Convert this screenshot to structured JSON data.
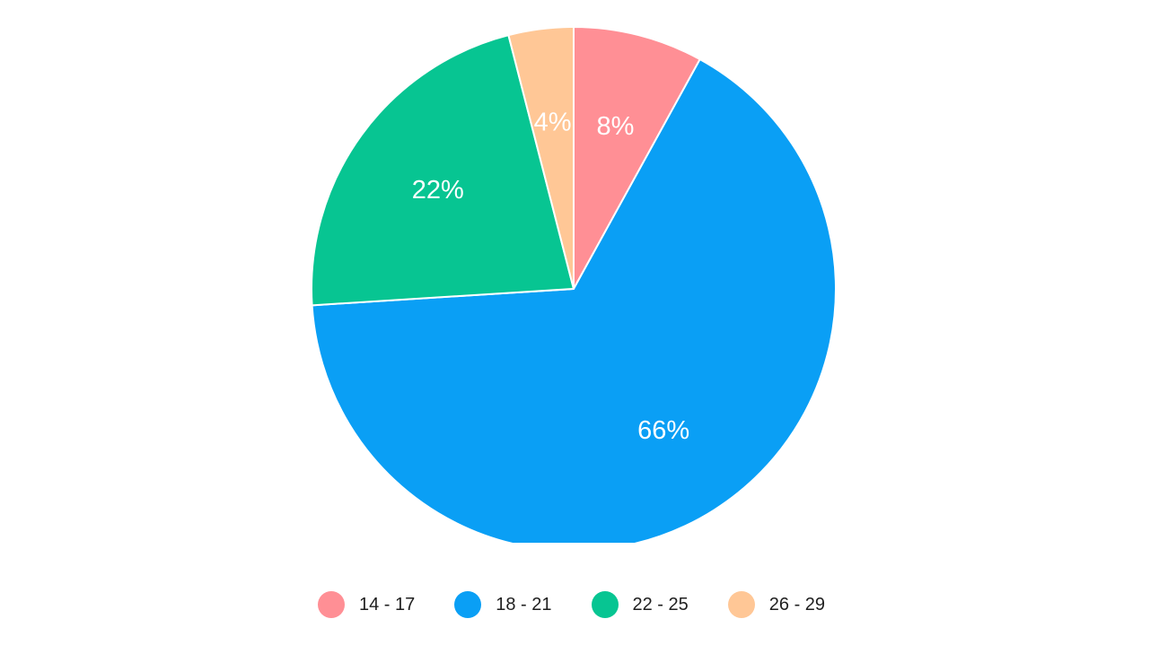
{
  "chart_data": {
    "type": "pie",
    "title": "",
    "categories": [
      "14 - 17",
      "18 - 21",
      "22 - 25",
      "26 - 29"
    ],
    "values": [
      8,
      66,
      22,
      4
    ],
    "data_labels": [
      "8%",
      "66%",
      "22%",
      "4%"
    ],
    "colors": [
      "#ff8f95",
      "#0a9ff5",
      "#07c592",
      "#ffc796"
    ],
    "start_angle_deg": 0,
    "direction": "clockwise",
    "slice_border_color": "#ffffff",
    "legend": {
      "position": "bottom-center",
      "entries": [
        {
          "label": "14 - 17",
          "color": "#ff8f95"
        },
        {
          "label": "18 - 21",
          "color": "#0a9ff5"
        },
        {
          "label": "22 - 25",
          "color": "#07c592"
        },
        {
          "label": "26 - 29",
          "color": "#ffc796"
        }
      ]
    }
  }
}
